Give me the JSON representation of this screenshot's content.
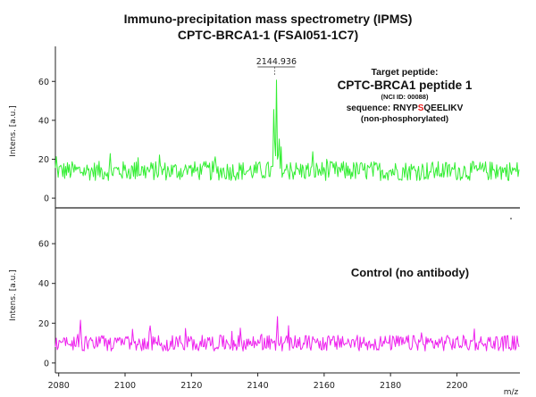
{
  "title": "Immuno-precipitation mass spectrometry (IPMS)",
  "subtitle": "CPTC-BRCA1-1 (FSAI051-1C7)",
  "chart_data": [
    {
      "type": "line",
      "panel": "top",
      "ylabel": "Intens. [a.u.]",
      "xlabel": "m/z",
      "ylim": [
        -5,
        78
      ],
      "yticks": [
        0,
        20,
        40,
        60
      ],
      "xlim": [
        2079,
        2219
      ],
      "line_color": "#33ee33",
      "peak_label": "2144.936",
      "baseline": 14,
      "noise_amplitude": 5,
      "peaks": [
        {
          "x": 2144.9,
          "y": 55
        },
        {
          "x": 2145.6,
          "y": 64
        },
        {
          "x": 2146.4,
          "y": 35
        },
        {
          "x": 2147.1,
          "y": 23
        }
      ],
      "annotation": {
        "line1": "Target peptide:",
        "line2": "CPTC-BRCA1 peptide 1",
        "line3": "(NCI ID: 00088)",
        "line4_prefix": "sequence: RNYP",
        "line4_highlight": "S",
        "line4_suffix": "QEELIKV",
        "line5": "(non-phosphorylated)",
        "highlight_color": "#ee2222"
      }
    },
    {
      "type": "line",
      "panel": "bottom",
      "ylabel": "Intens. [a.u.]",
      "xlabel": "m/z",
      "ylim": [
        -5,
        78
      ],
      "yticks": [
        0,
        20,
        40,
        60
      ],
      "xlim": [
        2079,
        2219
      ],
      "xticks": [
        2080,
        2100,
        2120,
        2140,
        2160,
        2180,
        2200
      ],
      "line_color": "#ee22ee",
      "baseline": 10,
      "noise_amplitude": 4,
      "peaks": [
        {
          "x": 2086.5,
          "y": 23
        },
        {
          "x": 2107.5,
          "y": 21
        },
        {
          "x": 2146.0,
          "y": 23
        }
      ],
      "annotation": {
        "line1": "Control (no antibody)"
      }
    }
  ]
}
